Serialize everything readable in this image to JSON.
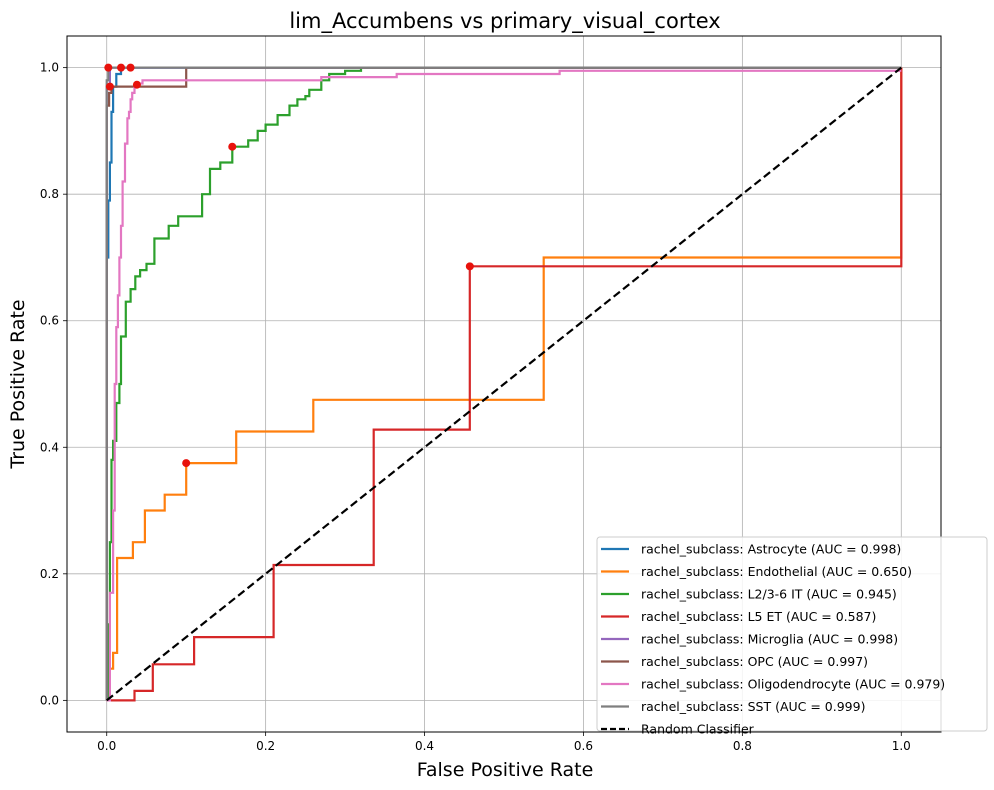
{
  "chart_data": {
    "type": "line",
    "title": "lim_Accumbens vs primary_visual_cortex",
    "xlabel": "False Positive Rate",
    "ylabel": "True Positive Rate",
    "xlim": [
      -0.05,
      1.05
    ],
    "ylim": [
      -0.05,
      1.05
    ],
    "x_ticks": [
      "0.0",
      "0.2",
      "0.4",
      "0.6",
      "0.8",
      "1.0"
    ],
    "y_ticks": [
      "0.0",
      "0.2",
      "0.4",
      "0.6",
      "0.8",
      "1.0"
    ],
    "grid": true,
    "legend_position": "lower-right",
    "series": [
      {
        "name": "rachel_subclass: Astrocyte (AUC = 0.998)",
        "color": "#1f77b4",
        "x": [
          0,
          0,
          0.002,
          0.002,
          0.004,
          0.004,
          0.006,
          0.006,
          0.008,
          0.008,
          0.012,
          0.012,
          0.018,
          0.018,
          0.03,
          0.03,
          1.0
        ],
        "y": [
          0,
          0.7,
          0.7,
          0.79,
          0.79,
          0.85,
          0.85,
          0.93,
          0.93,
          0.97,
          0.97,
          0.99,
          0.99,
          1.0,
          1.0,
          1.0,
          1.0
        ],
        "marker": [
          0.018,
          1.0
        ]
      },
      {
        "name": "rachel_subclass: Endothelial (AUC = 0.650)",
        "color": "#ff7f0e",
        "x": [
          0,
          0.003,
          0.003,
          0.008,
          0.008,
          0.013,
          0.013,
          0.033,
          0.033,
          0.048,
          0.048,
          0.073,
          0.073,
          0.1,
          0.1,
          0.163,
          0.163,
          0.26,
          0.26,
          0.55,
          0.55,
          1.0,
          1.0
        ],
        "y": [
          0,
          0,
          0.05,
          0.05,
          0.075,
          0.075,
          0.225,
          0.225,
          0.25,
          0.25,
          0.3,
          0.3,
          0.325,
          0.325,
          0.375,
          0.375,
          0.425,
          0.425,
          0.475,
          0.475,
          0.7,
          0.7,
          1.0
        ],
        "marker": [
          0.1,
          0.375
        ]
      },
      {
        "name": "rachel_subclass: L2/3-6 IT (AUC = 0.945)",
        "color": "#2ca02c",
        "x": [
          0,
          0.002,
          0.002,
          0.004,
          0.004,
          0.006,
          0.006,
          0.008,
          0.008,
          0.012,
          0.012,
          0.016,
          0.016,
          0.018,
          0.018,
          0.024,
          0.024,
          0.03,
          0.03,
          0.036,
          0.036,
          0.042,
          0.042,
          0.05,
          0.05,
          0.06,
          0.06,
          0.078,
          0.078,
          0.09,
          0.09,
          0.12,
          0.12,
          0.13,
          0.13,
          0.143,
          0.143,
          0.158,
          0.158,
          0.178,
          0.178,
          0.19,
          0.19,
          0.2,
          0.2,
          0.215,
          0.215,
          0.23,
          0.23,
          0.24,
          0.24,
          0.25,
          0.25,
          0.255,
          0.255,
          0.27,
          0.27,
          0.28,
          0.28,
          0.3,
          0.3,
          0.32,
          0.32,
          1.0
        ],
        "y": [
          0,
          0,
          0.12,
          0.12,
          0.25,
          0.25,
          0.38,
          0.38,
          0.41,
          0.41,
          0.47,
          0.47,
          0.5,
          0.5,
          0.575,
          0.575,
          0.63,
          0.63,
          0.65,
          0.65,
          0.67,
          0.67,
          0.68,
          0.68,
          0.69,
          0.69,
          0.73,
          0.73,
          0.75,
          0.75,
          0.765,
          0.765,
          0.8,
          0.8,
          0.84,
          0.84,
          0.85,
          0.85,
          0.875,
          0.875,
          0.885,
          0.885,
          0.9,
          0.9,
          0.91,
          0.91,
          0.925,
          0.925,
          0.94,
          0.94,
          0.95,
          0.95,
          0.955,
          0.955,
          0.965,
          0.965,
          0.98,
          0.98,
          0.99,
          0.99,
          0.995,
          0.995,
          1.0,
          1.0
        ],
        "marker": [
          0.158,
          0.875
        ]
      },
      {
        "name": "rachel_subclass: L5 ET (AUC = 0.587)",
        "color": "#d62728",
        "x": [
          0,
          0,
          0.035,
          0.035,
          0.058,
          0.058,
          0.11,
          0.11,
          0.21,
          0.21,
          0.336,
          0.336,
          0.457,
          0.457,
          1.0,
          1.0
        ],
        "y": [
          0,
          0,
          0,
          0.015,
          0.015,
          0.057,
          0.057,
          0.1,
          0.1,
          0.214,
          0.214,
          0.428,
          0.428,
          0.686,
          0.686,
          1.0
        ],
        "marker": [
          0.457,
          0.686
        ]
      },
      {
        "name": "rachel_subclass: Microglia (AUC = 0.998)",
        "color": "#9467bd",
        "x": [
          0,
          0,
          0.004,
          0.004,
          1.0
        ],
        "y": [
          0,
          0.97,
          0.97,
          1.0,
          1.0
        ],
        "marker": [
          0.004,
          0.97
        ]
      },
      {
        "name": "rachel_subclass: OPC (AUC = 0.997)",
        "color": "#8c564b",
        "x": [
          0,
          0,
          0.003,
          0.003,
          0.006,
          0.006,
          0.1,
          0.1,
          1.0
        ],
        "y": [
          0,
          0.94,
          0.94,
          0.96,
          0.96,
          0.97,
          0.97,
          1.0,
          1.0
        ],
        "marker": [
          0.03,
          1.0
        ]
      },
      {
        "name": "rachel_subclass: Oligodendrocyte (AUC = 0.979)",
        "color": "#e377c2",
        "x": [
          0,
          0.004,
          0.004,
          0.008,
          0.008,
          0.01,
          0.01,
          0.012,
          0.012,
          0.014,
          0.014,
          0.016,
          0.016,
          0.018,
          0.018,
          0.02,
          0.02,
          0.023,
          0.023,
          0.026,
          0.026,
          0.028,
          0.028,
          0.03,
          0.03,
          0.032,
          0.032,
          0.035,
          0.035,
          0.038,
          0.038,
          0.045,
          0.045,
          0.055,
          0.055,
          0.27,
          0.27,
          0.365,
          0.365,
          0.57,
          0.57,
          1.0
        ],
        "y": [
          0,
          0,
          0.17,
          0.17,
          0.3,
          0.3,
          0.5,
          0.5,
          0.59,
          0.59,
          0.64,
          0.64,
          0.7,
          0.7,
          0.75,
          0.75,
          0.82,
          0.82,
          0.88,
          0.88,
          0.92,
          0.92,
          0.93,
          0.93,
          0.95,
          0.95,
          0.96,
          0.96,
          0.97,
          0.97,
          0.975,
          0.975,
          0.98,
          0.98,
          0.98,
          0.98,
          0.985,
          0.985,
          0.99,
          0.99,
          0.995,
          0.995
        ],
        "marker": [
          0.038,
          0.973
        ]
      },
      {
        "name": "rachel_subclass: SST (AUC = 0.999)",
        "color": "#7f7f7f",
        "x": [
          0,
          0,
          0.002,
          0.002,
          1.0
        ],
        "y": [
          0,
          0.98,
          0.98,
          1.0,
          1.0
        ],
        "marker": [
          0.002,
          1.0
        ]
      }
    ],
    "reference": {
      "name": "Random Classifier",
      "color": "#000000",
      "x": [
        0,
        1
      ],
      "y": [
        0,
        1
      ]
    },
    "marker_color": "#e8120c"
  }
}
